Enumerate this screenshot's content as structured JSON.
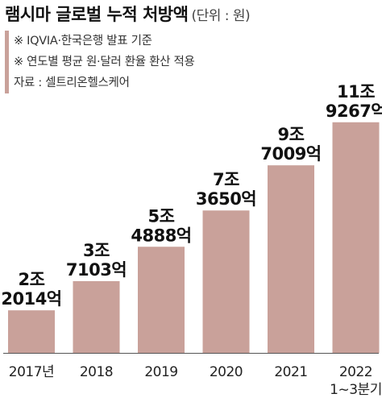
{
  "title": "램시마 글로벌 누적 처방액",
  "unit": "(단위 : 원)",
  "notes": [
    "※ IQVIA·한국은행 발표 기준",
    "※ 연도별 평균 원·달러 환율 환산 적용",
    "자료 : 셀트리온헬스케어"
  ],
  "colors": {
    "bar": "#c9a19a",
    "axis": "#555555",
    "accent_border": "#c9a19a"
  },
  "chart_data": {
    "type": "bar",
    "categories": [
      "2017년",
      "2018",
      "2019",
      "2020",
      "2021",
      "2022"
    ],
    "category_sublabels": [
      "",
      "",
      "",
      "",
      "",
      "1~3분기"
    ],
    "values": [
      2.2014,
      3.7103,
      5.4888,
      7.365,
      9.7009,
      11.9267
    ],
    "value_unit": "조원",
    "labels_line1": [
      "2조",
      "3조",
      "5조",
      "7조",
      "9조",
      "11조"
    ],
    "labels_line2": [
      "2014억",
      "7103억",
      "4888억",
      "3650억",
      "7009억",
      "9267억"
    ],
    "ylim": [
      0,
      12
    ],
    "grid": false,
    "legend": "none"
  }
}
